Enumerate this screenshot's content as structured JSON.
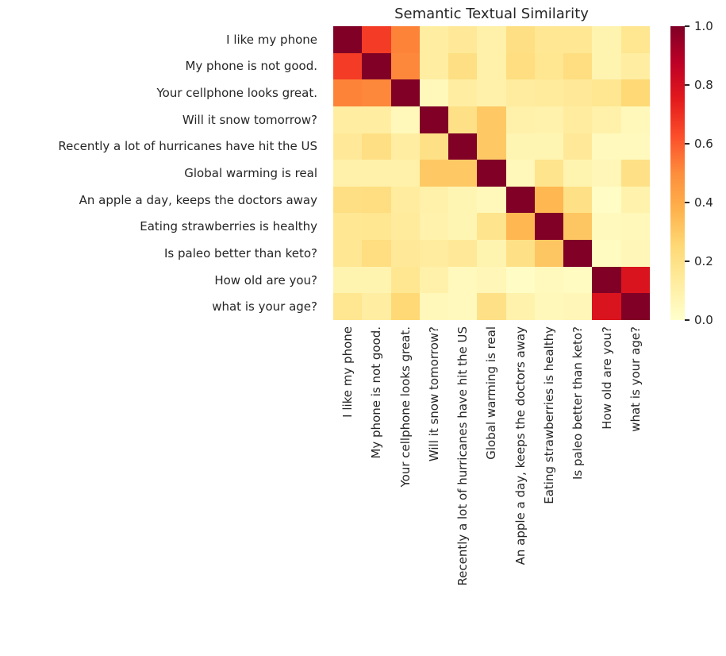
{
  "title": "Semantic Textual Similarity",
  "chart_data": {
    "type": "heatmap",
    "title": "Semantic Textual Similarity",
    "labels": [
      "I like my phone",
      "My phone is not good.",
      "Your cellphone looks great.",
      "Will it snow tomorrow?",
      "Recently a lot of hurricanes have hit the US",
      "Global warming is real",
      "An apple a day, keeps the doctors away",
      "Eating strawberries is healthy",
      "Is paleo better than keto?",
      "How old are you?",
      "what is your age?"
    ],
    "matrix": [
      [
        1.0,
        0.67,
        0.52,
        0.12,
        0.15,
        0.1,
        0.21,
        0.16,
        0.16,
        0.08,
        0.17
      ],
      [
        0.67,
        1.0,
        0.51,
        0.12,
        0.21,
        0.1,
        0.22,
        0.17,
        0.22,
        0.08,
        0.12
      ],
      [
        0.52,
        0.51,
        1.0,
        0.05,
        0.12,
        0.1,
        0.13,
        0.14,
        0.15,
        0.17,
        0.25
      ],
      [
        0.12,
        0.12,
        0.05,
        1.0,
        0.2,
        0.3,
        0.1,
        0.09,
        0.13,
        0.1,
        0.05
      ],
      [
        0.15,
        0.21,
        0.12,
        0.2,
        1.0,
        0.3,
        0.07,
        0.07,
        0.15,
        0.04,
        0.04
      ],
      [
        0.1,
        0.1,
        0.1,
        0.3,
        0.3,
        1.0,
        0.05,
        0.18,
        0.08,
        0.06,
        0.2
      ],
      [
        0.21,
        0.22,
        0.13,
        0.1,
        0.07,
        0.05,
        1.0,
        0.36,
        0.2,
        0.02,
        0.09
      ],
      [
        0.16,
        0.17,
        0.14,
        0.09,
        0.07,
        0.18,
        0.36,
        1.0,
        0.31,
        0.04,
        0.05
      ],
      [
        0.16,
        0.22,
        0.15,
        0.13,
        0.15,
        0.08,
        0.2,
        0.31,
        1.0,
        0.03,
        0.06
      ],
      [
        0.08,
        0.08,
        0.17,
        0.1,
        0.04,
        0.06,
        0.02,
        0.04,
        0.03,
        1.0,
        0.78
      ],
      [
        0.17,
        0.12,
        0.25,
        0.05,
        0.04,
        0.2,
        0.09,
        0.05,
        0.06,
        0.78,
        1.0
      ]
    ],
    "vmin": 0.0,
    "vmax": 1.0,
    "colormap": "YlOrRd",
    "colormap_stops": [
      "#ffffcc",
      "#ffeda0",
      "#fed976",
      "#feb24c",
      "#fd8d3c",
      "#fc4e2a",
      "#e31a1c",
      "#bd0026",
      "#800026"
    ],
    "grid": false,
    "colorbar": {
      "position": "right",
      "tick_labels": [
        "1.0",
        "0.8",
        "0.6",
        "0.4",
        "0.2",
        "0.0"
      ]
    }
  },
  "colors": {
    "background": "#ffffff",
    "text": "#262626",
    "diagonal_max": "#800026"
  }
}
